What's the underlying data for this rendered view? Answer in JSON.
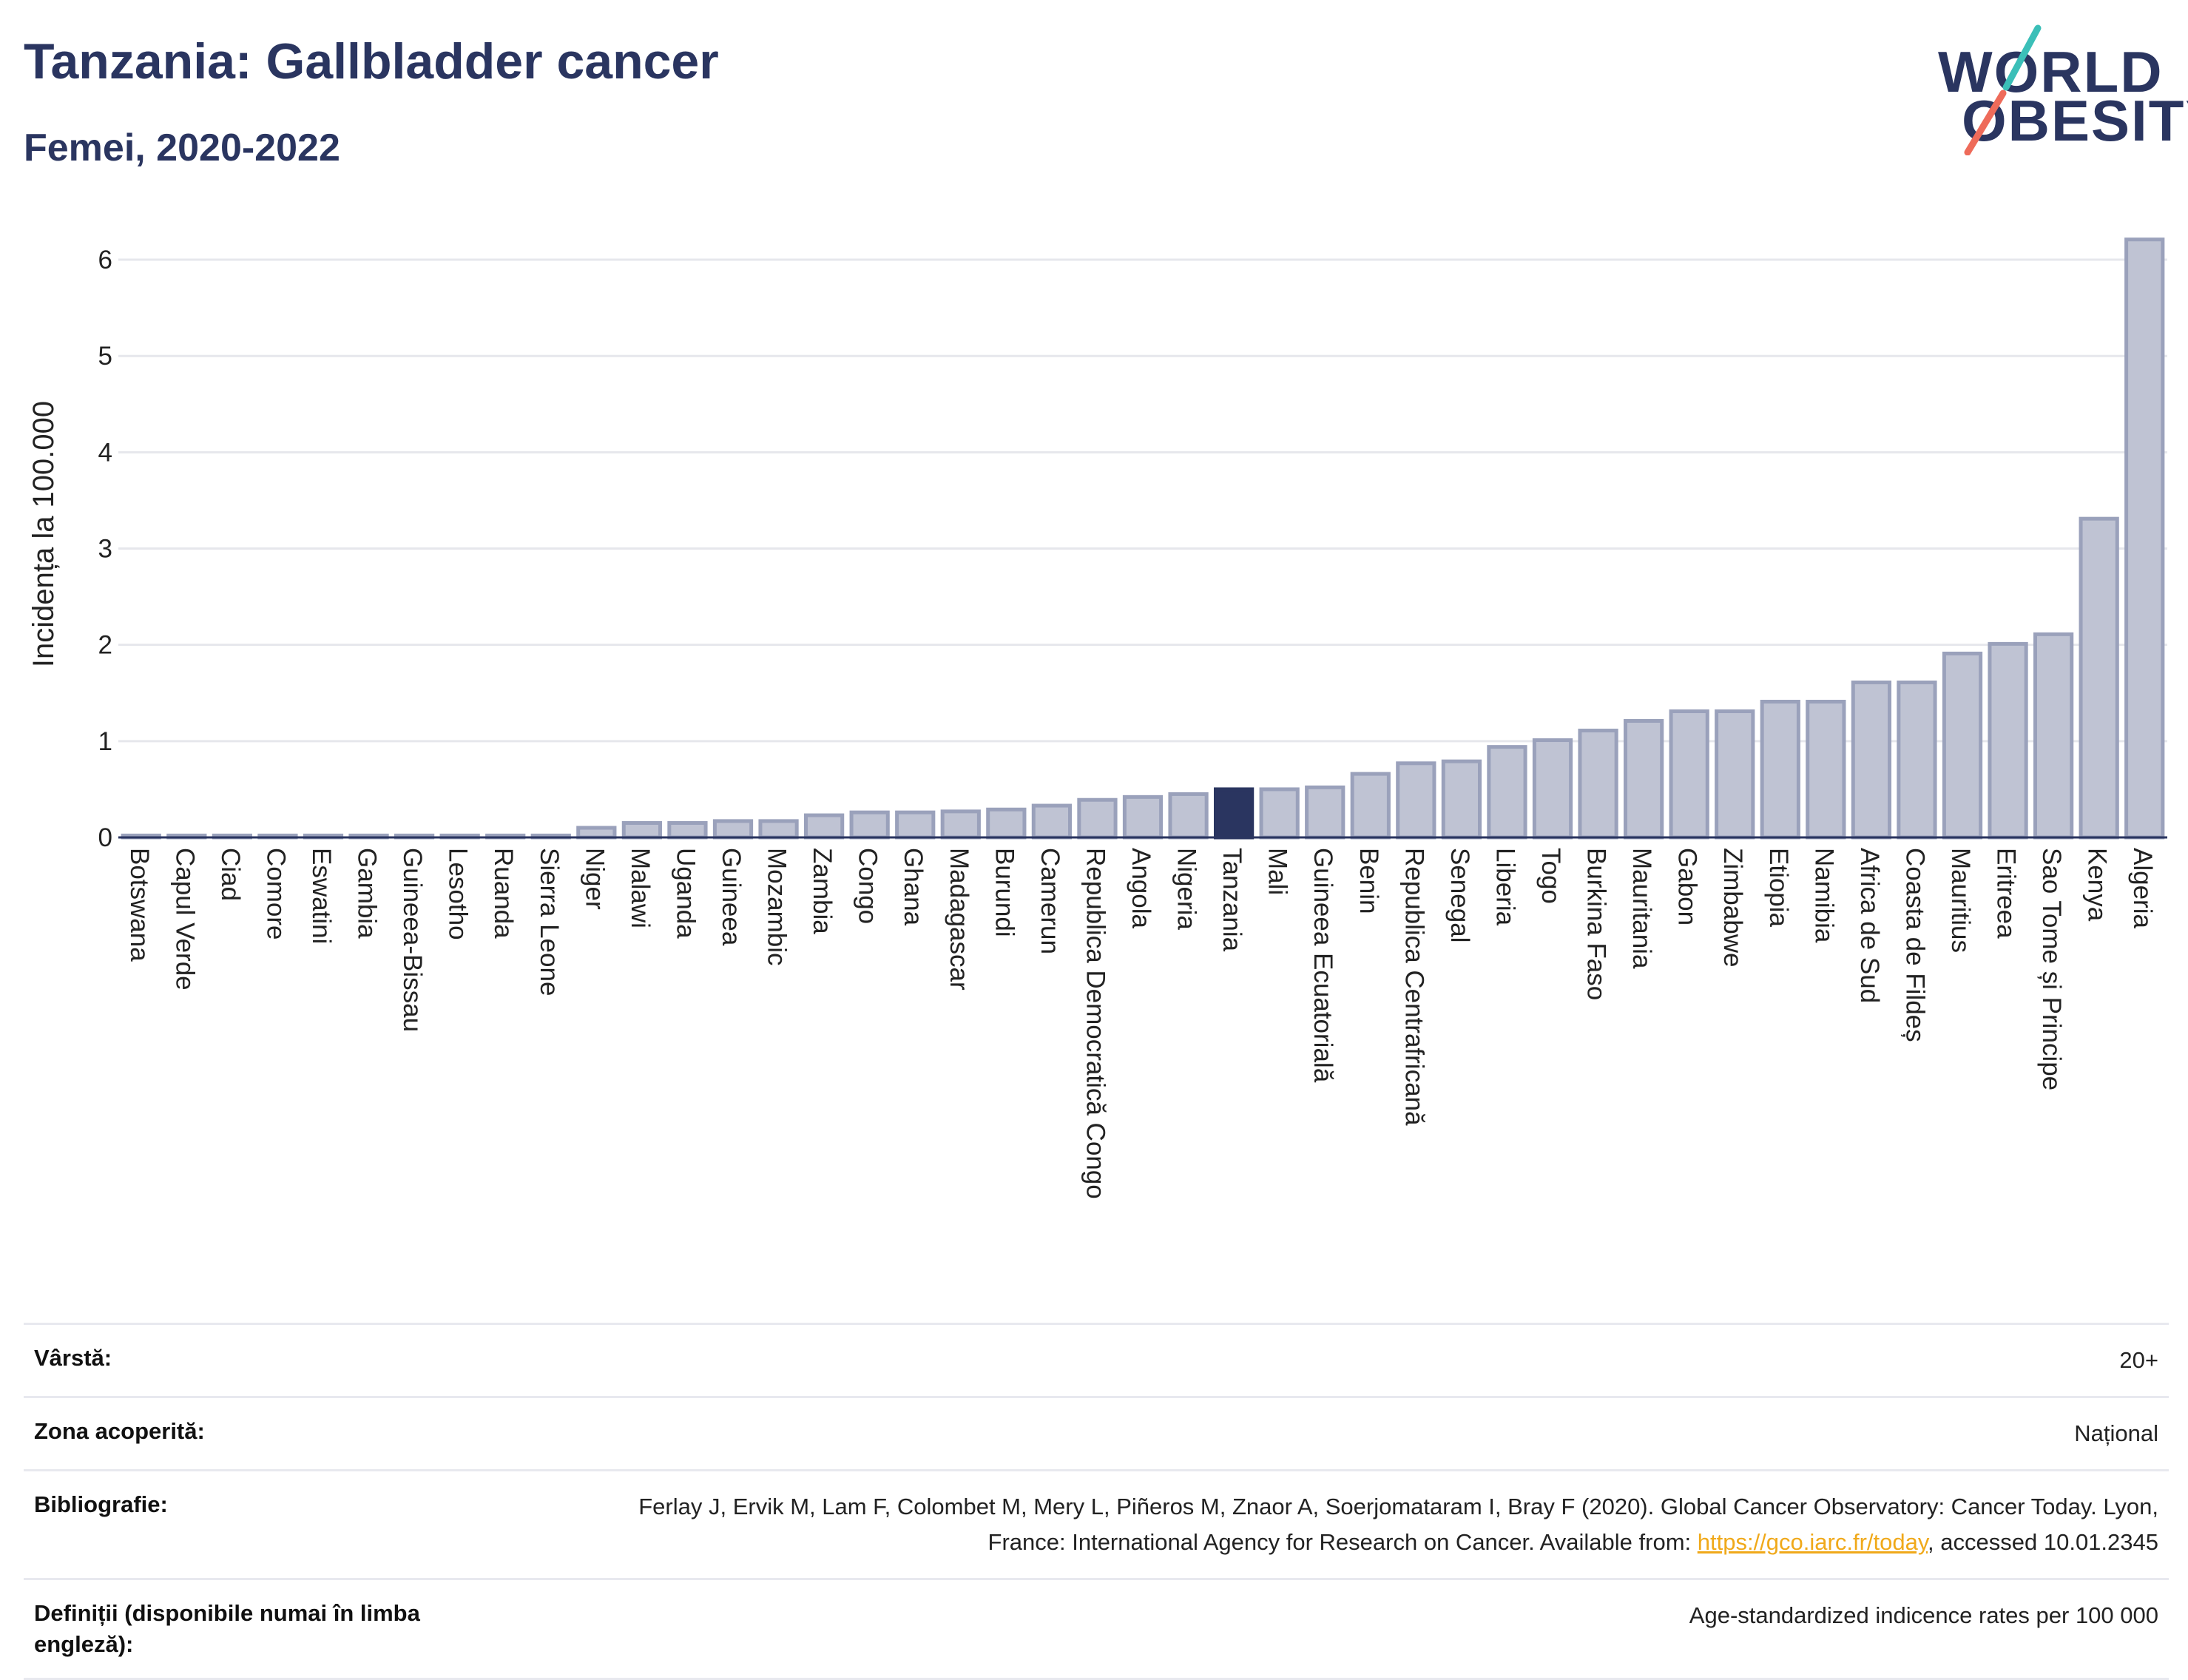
{
  "header": {
    "title": "Tanzania: Gallbladder cancer",
    "subtitle": "Femei, 2020-2022"
  },
  "logo": {
    "line1": "WORLD",
    "line2": "OBESITY",
    "colors": {
      "text": "#2a3560",
      "teal": "#3bbfb8",
      "coral": "#ee6b5a"
    }
  },
  "colors": {
    "bar": "#bfc3d3",
    "bar_stroke": "#9aa1bb",
    "highlight": "#2a3560",
    "grid": "#e6e7ec",
    "axis": "#2a3560"
  },
  "chart_data": {
    "type": "bar",
    "ylabel": "Incidența la 100.000",
    "ylim": [
      0,
      6.3
    ],
    "yticks": [
      0,
      1,
      2,
      3,
      4,
      5,
      6
    ],
    "grid": true,
    "highlight": "Tanzania",
    "categories": [
      "Botswana",
      "Capul Verde",
      "Ciad",
      "Comore",
      "Eswatini",
      "Gambia",
      "Guineea-Bissau",
      "Lesotho",
      "Ruanda",
      "Sierra Leone",
      "Niger",
      "Malawi",
      "Uganda",
      "Guineea",
      "Mozambic",
      "Zambia",
      "Congo",
      "Ghana",
      "Madagascar",
      "Burundi",
      "Camerun",
      "Republica Democratică Congo",
      "Angola",
      "Nigeria",
      "Tanzania",
      "Mali",
      "Guineea Ecuatorială",
      "Benin",
      "Republica Centrafricană",
      "Senegal",
      "Liberia",
      "Togo",
      "Burkina Faso",
      "Mauritania",
      "Gabon",
      "Zimbabwe",
      "Etiopia",
      "Namibia",
      "Africa de Sud",
      "Coasta de Fildeș",
      "Mauritius",
      "Eritreea",
      "Sao Tome și Principe",
      "Kenya",
      "Algeria"
    ],
    "values": [
      0.02,
      0.02,
      0.02,
      0.02,
      0.02,
      0.02,
      0.02,
      0.02,
      0.02,
      0.02,
      0.1,
      0.15,
      0.15,
      0.17,
      0.17,
      0.23,
      0.26,
      0.26,
      0.27,
      0.29,
      0.33,
      0.39,
      0.42,
      0.45,
      0.5,
      0.5,
      0.52,
      0.66,
      0.77,
      0.79,
      0.94,
      1.01,
      1.11,
      1.21,
      1.31,
      1.31,
      1.41,
      1.41,
      1.61,
      1.61,
      1.91,
      2.01,
      2.11,
      3.31,
      6.21
    ]
  },
  "info": {
    "rows": [
      {
        "label": "Vârstă:",
        "value": "20+"
      },
      {
        "label": "Zona acoperită:",
        "value": "Național"
      },
      {
        "label": "Bibliografie:",
        "value_before": "Ferlay J, Ervik M, Lam F, Colombet M, Mery L, Piñeros M, Znaor A, Soerjomataram I, Bray F (2020). Global Cancer Observatory: Cancer Today. Lyon, France: International Agency for Research on Cancer. Available from: ",
        "link": "https://gco.iarc.fr/today",
        "value_after": ", accessed 10.01.2345"
      },
      {
        "label": "Definiții (disponibile numai în limba engleză):",
        "value": "Age-standardized indicence rates per 100 000"
      }
    ]
  }
}
